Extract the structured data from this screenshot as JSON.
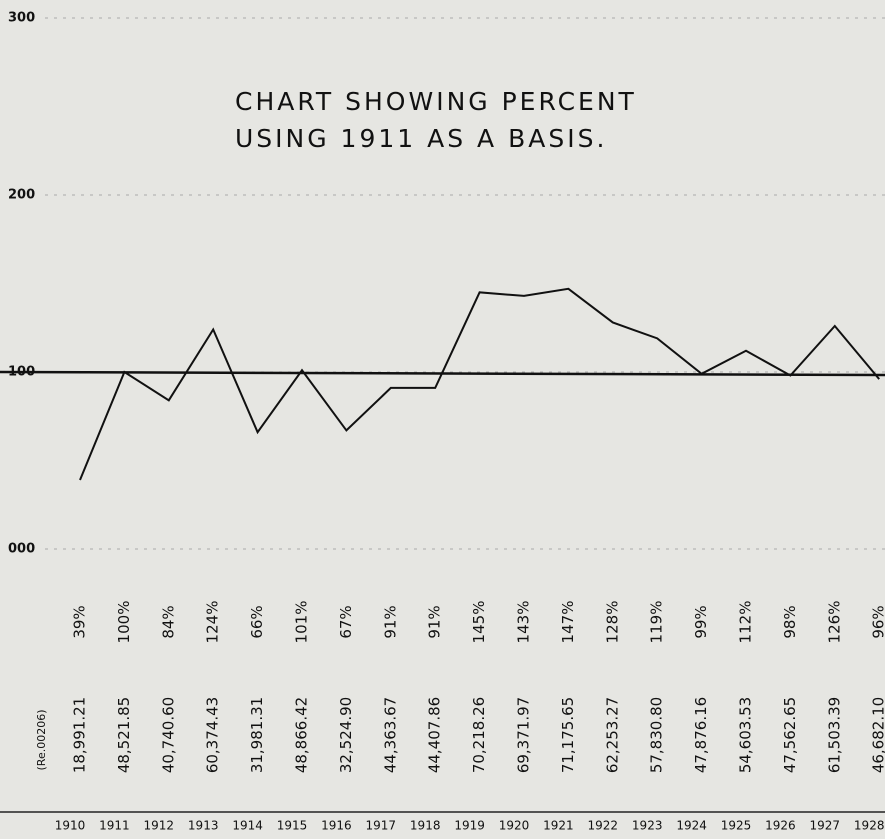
{
  "chart_data": {
    "type": "line",
    "title": [
      "CHART SHOWING PERCENT",
      "USING 1911 AS A BASIS."
    ],
    "categories": [
      "1910",
      "1911",
      "1912",
      "1913",
      "1914",
      "1915",
      "1916",
      "1917",
      "1918",
      "1919",
      "1920",
      "1921",
      "1922",
      "1923",
      "1924",
      "1925",
      "1926",
      "1927",
      "1928"
    ],
    "values": [
      39,
      100,
      84,
      124,
      66,
      101,
      67,
      91,
      91,
      145,
      143,
      147,
      128,
      119,
      99,
      112,
      98,
      126,
      96
    ],
    "value_labels": [
      "39%",
      "100%",
      "84%",
      "124%",
      "66%",
      "101%",
      "67%",
      "91%",
      "91%",
      "145%",
      "143%",
      "147%",
      "128%",
      "119%",
      "99%",
      "112%",
      "98%",
      "126%",
      "96%"
    ],
    "amount_note": "(Re.00206)",
    "amounts": [
      "18,991.21",
      "48,521.85",
      "40,740.60",
      "60,374.43",
      "31,981.31",
      "48,866.42",
      "32,524.90",
      "44,363.67",
      "44,407.86",
      "70,218.26",
      "69,371.97",
      "71,175.65",
      "62,253.27",
      "57,830.80",
      "47,876.16",
      "54,603.53",
      "47,562.65",
      "61,503.39",
      "46,682.10"
    ],
    "color": "#111111",
    "ylim": [
      0,
      300
    ],
    "yticks": [
      {
        "value": 0,
        "label": "000"
      },
      100,
      200,
      300
    ],
    "reference_line": 100,
    "grid": true
  }
}
